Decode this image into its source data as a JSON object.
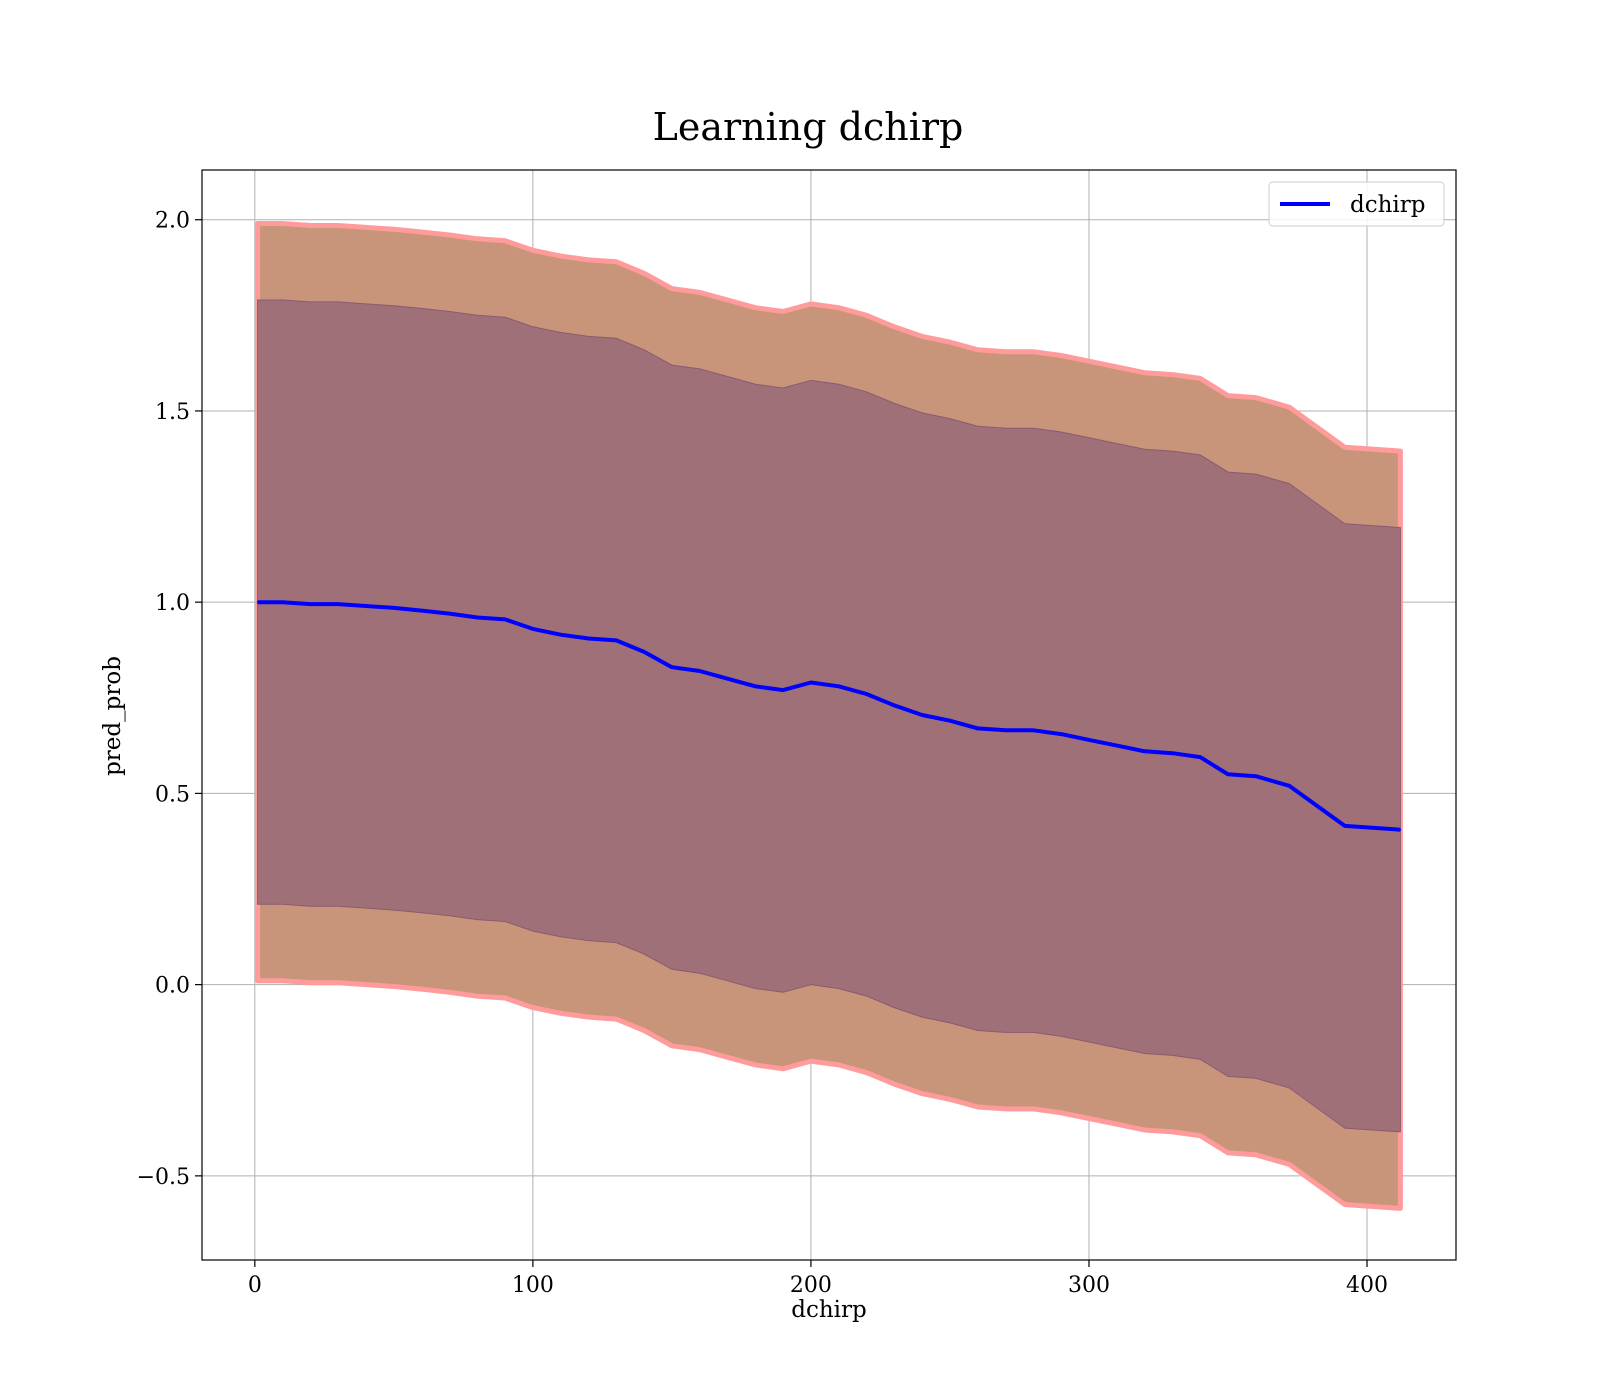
{
  "chart_data": {
    "type": "line",
    "title": "Learning dchirp",
    "xlabel": "dchirp",
    "ylabel": "pred_prob",
    "xlim": [
      -19,
      432
    ],
    "ylim": [
      -0.72,
      2.13
    ],
    "xticks": [
      0,
      100,
      200,
      300,
      400
    ],
    "yticks": [
      -0.5,
      0.0,
      0.5,
      1.0,
      1.5,
      2.0
    ],
    "xtick_labels": [
      "0",
      "100",
      "200",
      "300",
      "400"
    ],
    "ytick_labels": [
      "−0.5",
      "0.0",
      "0.5",
      "1.0",
      "1.5",
      "2.0"
    ],
    "grid": true,
    "legend_position": "top-right",
    "colors": {
      "mean_line": "#0000ff",
      "outer_band": "#c8957a",
      "inner_band": "#a07079",
      "band_edge": "#ff9b9b"
    },
    "series": [
      {
        "name": "dchirp",
        "x": [
          1,
          10,
          20,
          30,
          40,
          50,
          60,
          70,
          80,
          90,
          100,
          110,
          120,
          130,
          140,
          150,
          160,
          170,
          180,
          190,
          200,
          210,
          220,
          230,
          240,
          250,
          260,
          270,
          280,
          290,
          300,
          310,
          320,
          330,
          340,
          350,
          360,
          372,
          392,
          412
        ],
        "mean": [
          1.0,
          1.0,
          0.995,
          0.995,
          0.99,
          0.985,
          0.978,
          0.97,
          0.96,
          0.955,
          0.93,
          0.915,
          0.905,
          0.9,
          0.87,
          0.83,
          0.82,
          0.8,
          0.78,
          0.77,
          0.79,
          0.78,
          0.76,
          0.73,
          0.705,
          0.69,
          0.67,
          0.665,
          0.665,
          0.655,
          0.64,
          0.625,
          0.61,
          0.605,
          0.595,
          0.55,
          0.545,
          0.52,
          0.415,
          0.405
        ],
        "inner_band": {
          "upper": [
            1.79,
            1.79,
            1.785,
            1.785,
            1.78,
            1.775,
            1.768,
            1.76,
            1.75,
            1.745,
            1.72,
            1.705,
            1.695,
            1.69,
            1.66,
            1.62,
            1.61,
            1.59,
            1.57,
            1.56,
            1.58,
            1.57,
            1.55,
            1.52,
            1.495,
            1.48,
            1.46,
            1.455,
            1.455,
            1.445,
            1.43,
            1.415,
            1.4,
            1.395,
            1.385,
            1.34,
            1.335,
            1.31,
            1.205,
            1.195
          ],
          "lower": [
            0.21,
            0.21,
            0.205,
            0.205,
            0.2,
            0.195,
            0.188,
            0.18,
            0.17,
            0.165,
            0.14,
            0.125,
            0.115,
            0.11,
            0.08,
            0.04,
            0.03,
            0.01,
            -0.01,
            -0.02,
            0.0,
            -0.01,
            -0.03,
            -0.06,
            -0.085,
            -0.1,
            -0.12,
            -0.125,
            -0.125,
            -0.135,
            -0.15,
            -0.165,
            -0.18,
            -0.185,
            -0.195,
            -0.24,
            -0.245,
            -0.27,
            -0.375,
            -0.385
          ]
        },
        "outer_band": {
          "upper": [
            1.99,
            1.99,
            1.985,
            1.985,
            1.98,
            1.975,
            1.968,
            1.96,
            1.95,
            1.945,
            1.92,
            1.905,
            1.895,
            1.89,
            1.86,
            1.82,
            1.81,
            1.79,
            1.77,
            1.76,
            1.78,
            1.77,
            1.75,
            1.72,
            1.695,
            1.68,
            1.66,
            1.655,
            1.655,
            1.645,
            1.63,
            1.615,
            1.6,
            1.595,
            1.585,
            1.54,
            1.535,
            1.51,
            1.405,
            1.395
          ],
          "lower": [
            0.01,
            0.01,
            0.005,
            0.005,
            0.0,
            -0.005,
            -0.012,
            -0.02,
            -0.03,
            -0.035,
            -0.06,
            -0.075,
            -0.085,
            -0.09,
            -0.12,
            -0.16,
            -0.17,
            -0.19,
            -0.21,
            -0.22,
            -0.2,
            -0.21,
            -0.23,
            -0.26,
            -0.285,
            -0.3,
            -0.32,
            -0.325,
            -0.325,
            -0.335,
            -0.35,
            -0.365,
            -0.38,
            -0.385,
            -0.395,
            -0.44,
            -0.445,
            -0.47,
            -0.575,
            -0.585
          ]
        }
      }
    ]
  }
}
